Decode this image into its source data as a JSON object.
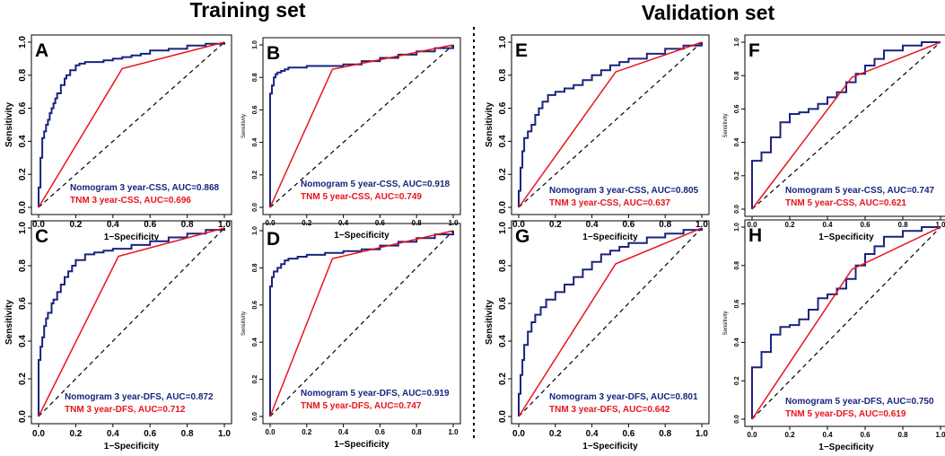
{
  "headers": {
    "training": "Training set",
    "validation": "Validation set"
  },
  "colors": {
    "nomogram": "#1a237e",
    "tnm": "#e8141c",
    "diagonal": "#000000",
    "axis": "#000000"
  },
  "chart_data": [
    {
      "type": "line",
      "panel": "A",
      "set": "Training set",
      "xlabel": "1−Specificity",
      "ylabel": "Sensitivity",
      "xlim": [
        0,
        1
      ],
      "ylim": [
        0,
        1
      ],
      "xticks": [
        "0.0",
        "0.2",
        "0.4",
        "0.6",
        "0.8",
        "1.0"
      ],
      "yticks": [
        "0.0",
        "0.2",
        "0.4",
        "0.6",
        "0.8",
        "1.0"
      ],
      "series": [
        {
          "name": "Nomogram 3 year-CSS",
          "legend": "Nomogram 3 year-CSS, AUC=0.868",
          "auc": 0.868,
          "step": true,
          "x": [
            0,
            0,
            0.01,
            0.01,
            0.02,
            0.02,
            0.03,
            0.04,
            0.05,
            0.06,
            0.07,
            0.08,
            0.09,
            0.1,
            0.12,
            0.14,
            0.15,
            0.17,
            0.2,
            0.22,
            0.25,
            0.3,
            0.35,
            0.4,
            0.45,
            0.5,
            0.55,
            0.6,
            0.7,
            0.8,
            0.9,
            1
          ],
          "y": [
            0,
            0.12,
            0.2,
            0.3,
            0.36,
            0.42,
            0.46,
            0.5,
            0.53,
            0.57,
            0.6,
            0.63,
            0.66,
            0.69,
            0.74,
            0.78,
            0.8,
            0.83,
            0.86,
            0.87,
            0.88,
            0.88,
            0.89,
            0.9,
            0.91,
            0.92,
            0.93,
            0.95,
            0.96,
            0.98,
            0.99,
            1
          ]
        },
        {
          "name": "TNM 3 year-CSS",
          "legend": "TNM 3 year-CSS, AUC=0.696",
          "auc": 0.696,
          "step": false,
          "x": [
            0,
            0.45,
            1
          ],
          "y": [
            0,
            0.84,
            1
          ]
        }
      ]
    },
    {
      "type": "line",
      "panel": "B",
      "set": "Training set",
      "xlabel": "1−Specificity",
      "ylabel": "Sensitivity",
      "xlim": [
        0,
        1
      ],
      "ylim": [
        0,
        1
      ],
      "xticks": [
        "0.0",
        "0.2",
        "0.4",
        "0.6",
        "0.8",
        "1.0"
      ],
      "yticks": [
        "0.0",
        "0.2",
        "0.4",
        "0.6",
        "0.8",
        "1.0"
      ],
      "series": [
        {
          "name": "Nomogram 5 year-CSS",
          "legend": "Nomogram 5 year-CSS, AUC=0.918",
          "auc": 0.918,
          "step": true,
          "x": [
            0,
            0,
            0.01,
            0.02,
            0.03,
            0.04,
            0.06,
            0.08,
            0.1,
            0.15,
            0.2,
            0.3,
            0.4,
            0.5,
            0.6,
            0.7,
            0.8,
            0.9,
            1
          ],
          "y": [
            0,
            0.7,
            0.75,
            0.8,
            0.82,
            0.83,
            0.84,
            0.85,
            0.86,
            0.86,
            0.87,
            0.87,
            0.88,
            0.9,
            0.92,
            0.94,
            0.96,
            0.98,
            1
          ]
        },
        {
          "name": "TNM 5 year-CSS",
          "legend": "TNM 5 year-CSS, AUC=0.749",
          "auc": 0.749,
          "step": false,
          "x": [
            0,
            0.34,
            1
          ],
          "y": [
            0,
            0.85,
            1
          ]
        }
      ]
    },
    {
      "type": "line",
      "panel": "C",
      "set": "Training set",
      "xlabel": "1−Specificity",
      "ylabel": "Sensitivity",
      "xlim": [
        0,
        1
      ],
      "ylim": [
        0,
        1
      ],
      "xticks": [
        "0.0",
        "0.2",
        "0.4",
        "0.6",
        "0.8",
        "1.0"
      ],
      "yticks": [
        "0.0",
        "0.2",
        "0.4",
        "0.6",
        "0.8",
        "1.0"
      ],
      "series": [
        {
          "name": "Nomogram 3 year-DFS",
          "legend": "Nomogram 3 year-DFS, AUC=0.872",
          "auc": 0.872,
          "step": true,
          "x": [
            0,
            0,
            0.01,
            0.02,
            0.03,
            0.04,
            0.05,
            0.07,
            0.08,
            0.1,
            0.12,
            0.14,
            0.16,
            0.18,
            0.2,
            0.25,
            0.3,
            0.35,
            0.4,
            0.5,
            0.6,
            0.7,
            0.8,
            0.9,
            1
          ],
          "y": [
            0,
            0.3,
            0.37,
            0.42,
            0.48,
            0.52,
            0.55,
            0.6,
            0.62,
            0.66,
            0.7,
            0.74,
            0.77,
            0.8,
            0.83,
            0.86,
            0.87,
            0.88,
            0.89,
            0.91,
            0.93,
            0.95,
            0.97,
            0.99,
            1
          ]
        },
        {
          "name": "TNM 3 year-DFS",
          "legend": "TNM 3 year-DFS, AUC=0.712",
          "auc": 0.712,
          "step": false,
          "x": [
            0,
            0.43,
            1
          ],
          "y": [
            0,
            0.85,
            1
          ]
        }
      ]
    },
    {
      "type": "line",
      "panel": "D",
      "set": "Training set",
      "xlabel": "1−Specificity",
      "ylabel": "Sensitivity",
      "xlim": [
        0,
        1
      ],
      "ylim": [
        0,
        1
      ],
      "xticks": [
        "0.0",
        "0.2",
        "0.4",
        "0.6",
        "0.8",
        "1.0"
      ],
      "yticks": [
        "0.0",
        "0.2",
        "0.4",
        "0.6",
        "0.8",
        "1.0"
      ],
      "series": [
        {
          "name": "Nomogram 5 year-DFS",
          "legend": "Nomogram 5 year-DFS, AUC=0.919",
          "auc": 0.919,
          "step": true,
          "x": [
            0,
            0,
            0.01,
            0.02,
            0.04,
            0.06,
            0.08,
            0.1,
            0.15,
            0.2,
            0.3,
            0.4,
            0.5,
            0.6,
            0.7,
            0.8,
            0.9,
            1
          ],
          "y": [
            0,
            0.7,
            0.75,
            0.78,
            0.8,
            0.82,
            0.84,
            0.85,
            0.86,
            0.87,
            0.88,
            0.89,
            0.9,
            0.92,
            0.94,
            0.96,
            0.98,
            1
          ]
        },
        {
          "name": "TNM 5 year-DFS",
          "legend": "TNM 5 year-DFS, AUC=0.747",
          "auc": 0.747,
          "step": false,
          "x": [
            0,
            0.34,
            1
          ],
          "y": [
            0,
            0.85,
            1
          ]
        }
      ]
    },
    {
      "type": "line",
      "panel": "E",
      "set": "Validation set",
      "xlabel": "1−Specificity",
      "ylabel": "Sensitivity",
      "xlim": [
        0,
        1
      ],
      "ylim": [
        0,
        1
      ],
      "xticks": [
        "0.0",
        "0.2",
        "0.4",
        "0.6",
        "0.8",
        "1.0"
      ],
      "yticks": [
        "0.0",
        "0.2",
        "0.4",
        "0.6",
        "0.8",
        "1.0"
      ],
      "series": [
        {
          "name": "Nomogram 3 year-CSS",
          "legend": "Nomogram 3 year-CSS, AUC=0.805",
          "auc": 0.805,
          "step": true,
          "x": [
            0,
            0,
            0.01,
            0.02,
            0.03,
            0.05,
            0.07,
            0.09,
            0.11,
            0.13,
            0.16,
            0.2,
            0.25,
            0.3,
            0.35,
            0.4,
            0.45,
            0.5,
            0.55,
            0.6,
            0.7,
            0.8,
            0.9,
            1
          ],
          "y": [
            0,
            0.1,
            0.24,
            0.34,
            0.42,
            0.46,
            0.5,
            0.56,
            0.6,
            0.64,
            0.68,
            0.7,
            0.72,
            0.74,
            0.77,
            0.8,
            0.83,
            0.86,
            0.88,
            0.9,
            0.93,
            0.96,
            0.98,
            1
          ]
        },
        {
          "name": "TNM 3 year-CSS",
          "legend": "TNM 3 year-CSS, AUC=0.637",
          "auc": 0.637,
          "step": false,
          "x": [
            0,
            0.53,
            1
          ],
          "y": [
            0,
            0.82,
            1
          ]
        }
      ]
    },
    {
      "type": "line",
      "panel": "F",
      "set": "Validation set",
      "xlabel": "1−Specificity",
      "ylabel": "Sensitivity",
      "xlim": [
        0,
        1
      ],
      "ylim": [
        0,
        1
      ],
      "xticks": [
        "0.0",
        "0.2",
        "0.4",
        "0.6",
        "0.8",
        "1.0"
      ],
      "yticks": [
        "0.0",
        "0.2",
        "0.4",
        "0.6",
        "0.8",
        "1.0"
      ],
      "series": [
        {
          "name": "Nomogram 5 year-CSS",
          "legend": "Nomogram 5 year-CSS, AUC=0.747",
          "auc": 0.747,
          "step": true,
          "x": [
            0,
            0,
            0.05,
            0.1,
            0.15,
            0.2,
            0.25,
            0.3,
            0.35,
            0.4,
            0.45,
            0.5,
            0.55,
            0.6,
            0.65,
            0.7,
            0.8,
            0.9,
            1
          ],
          "y": [
            0,
            0.29,
            0.34,
            0.43,
            0.52,
            0.57,
            0.58,
            0.6,
            0.63,
            0.67,
            0.7,
            0.76,
            0.81,
            0.86,
            0.9,
            0.95,
            0.98,
            1,
            1
          ]
        },
        {
          "name": "TNM 5 year-CSS",
          "legend": "TNM 5 year-CSS, AUC=0.621",
          "auc": 0.621,
          "step": false,
          "x": [
            0,
            0.53,
            1
          ],
          "y": [
            0,
            0.79,
            1
          ]
        }
      ]
    },
    {
      "type": "line",
      "panel": "G",
      "set": "Validation set",
      "xlabel": "1−Specificity",
      "ylabel": "Sensitivity",
      "xlim": [
        0,
        1
      ],
      "ylim": [
        0,
        1
      ],
      "xticks": [
        "0.0",
        "0.2",
        "0.4",
        "0.6",
        "0.8",
        "1.0"
      ],
      "yticks": [
        "0.0",
        "0.2",
        "0.4",
        "0.6",
        "0.8",
        "1.0"
      ],
      "series": [
        {
          "name": "Nomogram 3 year-DFS",
          "legend": "Nomogram 3 year-DFS, AUC=0.801",
          "auc": 0.801,
          "step": true,
          "x": [
            0,
            0,
            0.01,
            0.02,
            0.03,
            0.05,
            0.07,
            0.09,
            0.12,
            0.15,
            0.2,
            0.25,
            0.3,
            0.35,
            0.4,
            0.45,
            0.5,
            0.55,
            0.6,
            0.7,
            0.8,
            0.9,
            1
          ],
          "y": [
            0,
            0.12,
            0.22,
            0.3,
            0.38,
            0.45,
            0.5,
            0.54,
            0.58,
            0.62,
            0.66,
            0.7,
            0.74,
            0.78,
            0.82,
            0.86,
            0.88,
            0.9,
            0.92,
            0.95,
            0.97,
            0.99,
            1
          ]
        },
        {
          "name": "TNM 3 year-DFS",
          "legend": "TNM 3 year-DFS, AUC=0.642",
          "auc": 0.642,
          "step": false,
          "x": [
            0,
            0.53,
            1
          ],
          "y": [
            0,
            0.81,
            1
          ]
        }
      ]
    },
    {
      "type": "line",
      "panel": "H",
      "set": "Validation set",
      "xlabel": "1−Specificity",
      "ylabel": "Sensitivity",
      "xlim": [
        0,
        1
      ],
      "ylim": [
        0,
        1
      ],
      "xticks": [
        "0.0",
        "0.2",
        "0.4",
        "0.6",
        "0.8",
        "1.0"
      ],
      "yticks": [
        "0.0",
        "0.2",
        "0.4",
        "0.6",
        "0.8",
        "1.0"
      ],
      "series": [
        {
          "name": "Nomogram 5 year-DFS",
          "legend": "Nomogram 5 year-DFS, AUC=0.750",
          "auc": 0.75,
          "step": true,
          "x": [
            0,
            0,
            0.05,
            0.1,
            0.15,
            0.2,
            0.25,
            0.3,
            0.35,
            0.4,
            0.45,
            0.5,
            0.55,
            0.6,
            0.65,
            0.7,
            0.8,
            0.9,
            1
          ],
          "y": [
            0,
            0.27,
            0.35,
            0.44,
            0.48,
            0.49,
            0.52,
            0.57,
            0.63,
            0.65,
            0.68,
            0.73,
            0.8,
            0.86,
            0.9,
            0.95,
            0.98,
            1,
            1
          ]
        },
        {
          "name": "TNM 5 year-DFS",
          "legend": "TNM 5 year-DFS, AUC=0.619",
          "auc": 0.619,
          "step": false,
          "x": [
            0,
            0.53,
            1
          ],
          "y": [
            0,
            0.78,
            1
          ]
        }
      ]
    }
  ]
}
